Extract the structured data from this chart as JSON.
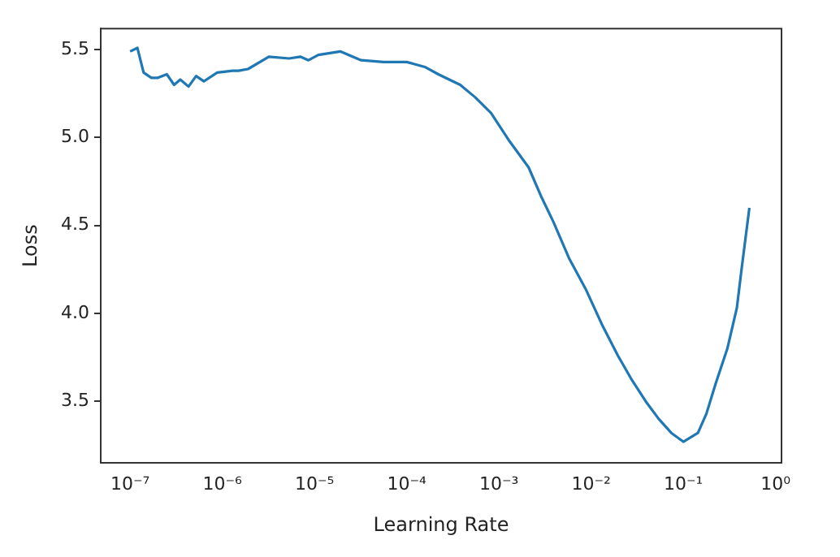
{
  "chart_data": {
    "type": "line",
    "xlabel": "Learning Rate",
    "ylabel": "Loss",
    "log": "x",
    "grid": false,
    "legend": false,
    "marker": "none",
    "line_style": "solid",
    "xlim": [
      4.8e-08,
      1.16
    ],
    "ylim": [
      3.15,
      5.62
    ],
    "xticks": [
      {
        "value": 1e-07,
        "label": "10⁻⁷"
      },
      {
        "value": 1e-06,
        "label": "10⁻⁶"
      },
      {
        "value": 1e-05,
        "label": "10⁻⁵"
      },
      {
        "value": 0.0001,
        "label": "10⁻⁴"
      },
      {
        "value": 0.001,
        "label": "10⁻³"
      },
      {
        "value": 0.01,
        "label": "10⁻²"
      },
      {
        "value": 0.1,
        "label": "10⁻¹"
      },
      {
        "value": 1,
        "label": "10⁰"
      }
    ],
    "yticks": [
      3.5,
      {
        "value": 4,
        "label": "4.0"
      },
      4.5,
      {
        "value": 5,
        "label": "5.0"
      },
      5.5
    ],
    "series": [
      {
        "color": "#1f77b4",
        "x": [
          1e-07,
          1.2e-07,
          1.4e-07,
          1.7e-07,
          2e-07,
          2.5e-07,
          3e-07,
          3.5e-07,
          4.3e-07,
          5.2e-07,
          6.3e-07,
          8.8e-07,
          1.3e-06,
          1.5e-06,
          1.9e-06,
          3.2e-06,
          5.3e-06,
          7e-06,
          8.6e-06,
          1.1e-05,
          1.9e-05,
          3.2e-05,
          5.6e-05,
          0.0001,
          0.00016,
          0.00022,
          0.00038,
          0.00055,
          0.00082,
          0.0013,
          0.0021,
          0.0029,
          0.0039,
          0.0058,
          0.0087,
          0.013,
          0.0195,
          0.027,
          0.039,
          0.054,
          0.074,
          0.1,
          0.144,
          0.178,
          0.224,
          0.3,
          0.38,
          0.43,
          0.52
        ],
        "values": [
          5.49,
          5.51,
          5.37,
          5.34,
          5.34,
          5.36,
          5.3,
          5.33,
          5.29,
          5.35,
          5.32,
          5.37,
          5.38,
          5.38,
          5.39,
          5.46,
          5.45,
          5.46,
          5.44,
          5.47,
          5.49,
          5.44,
          5.43,
          5.43,
          5.4,
          5.36,
          5.3,
          5.23,
          5.14,
          4.98,
          4.83,
          4.66,
          4.52,
          4.31,
          4.14,
          3.94,
          3.76,
          3.63,
          3.5,
          3.4,
          3.32,
          3.27,
          3.32,
          3.43,
          3.6,
          3.8,
          4.03,
          4.26,
          4.6
        ]
      }
    ]
  }
}
